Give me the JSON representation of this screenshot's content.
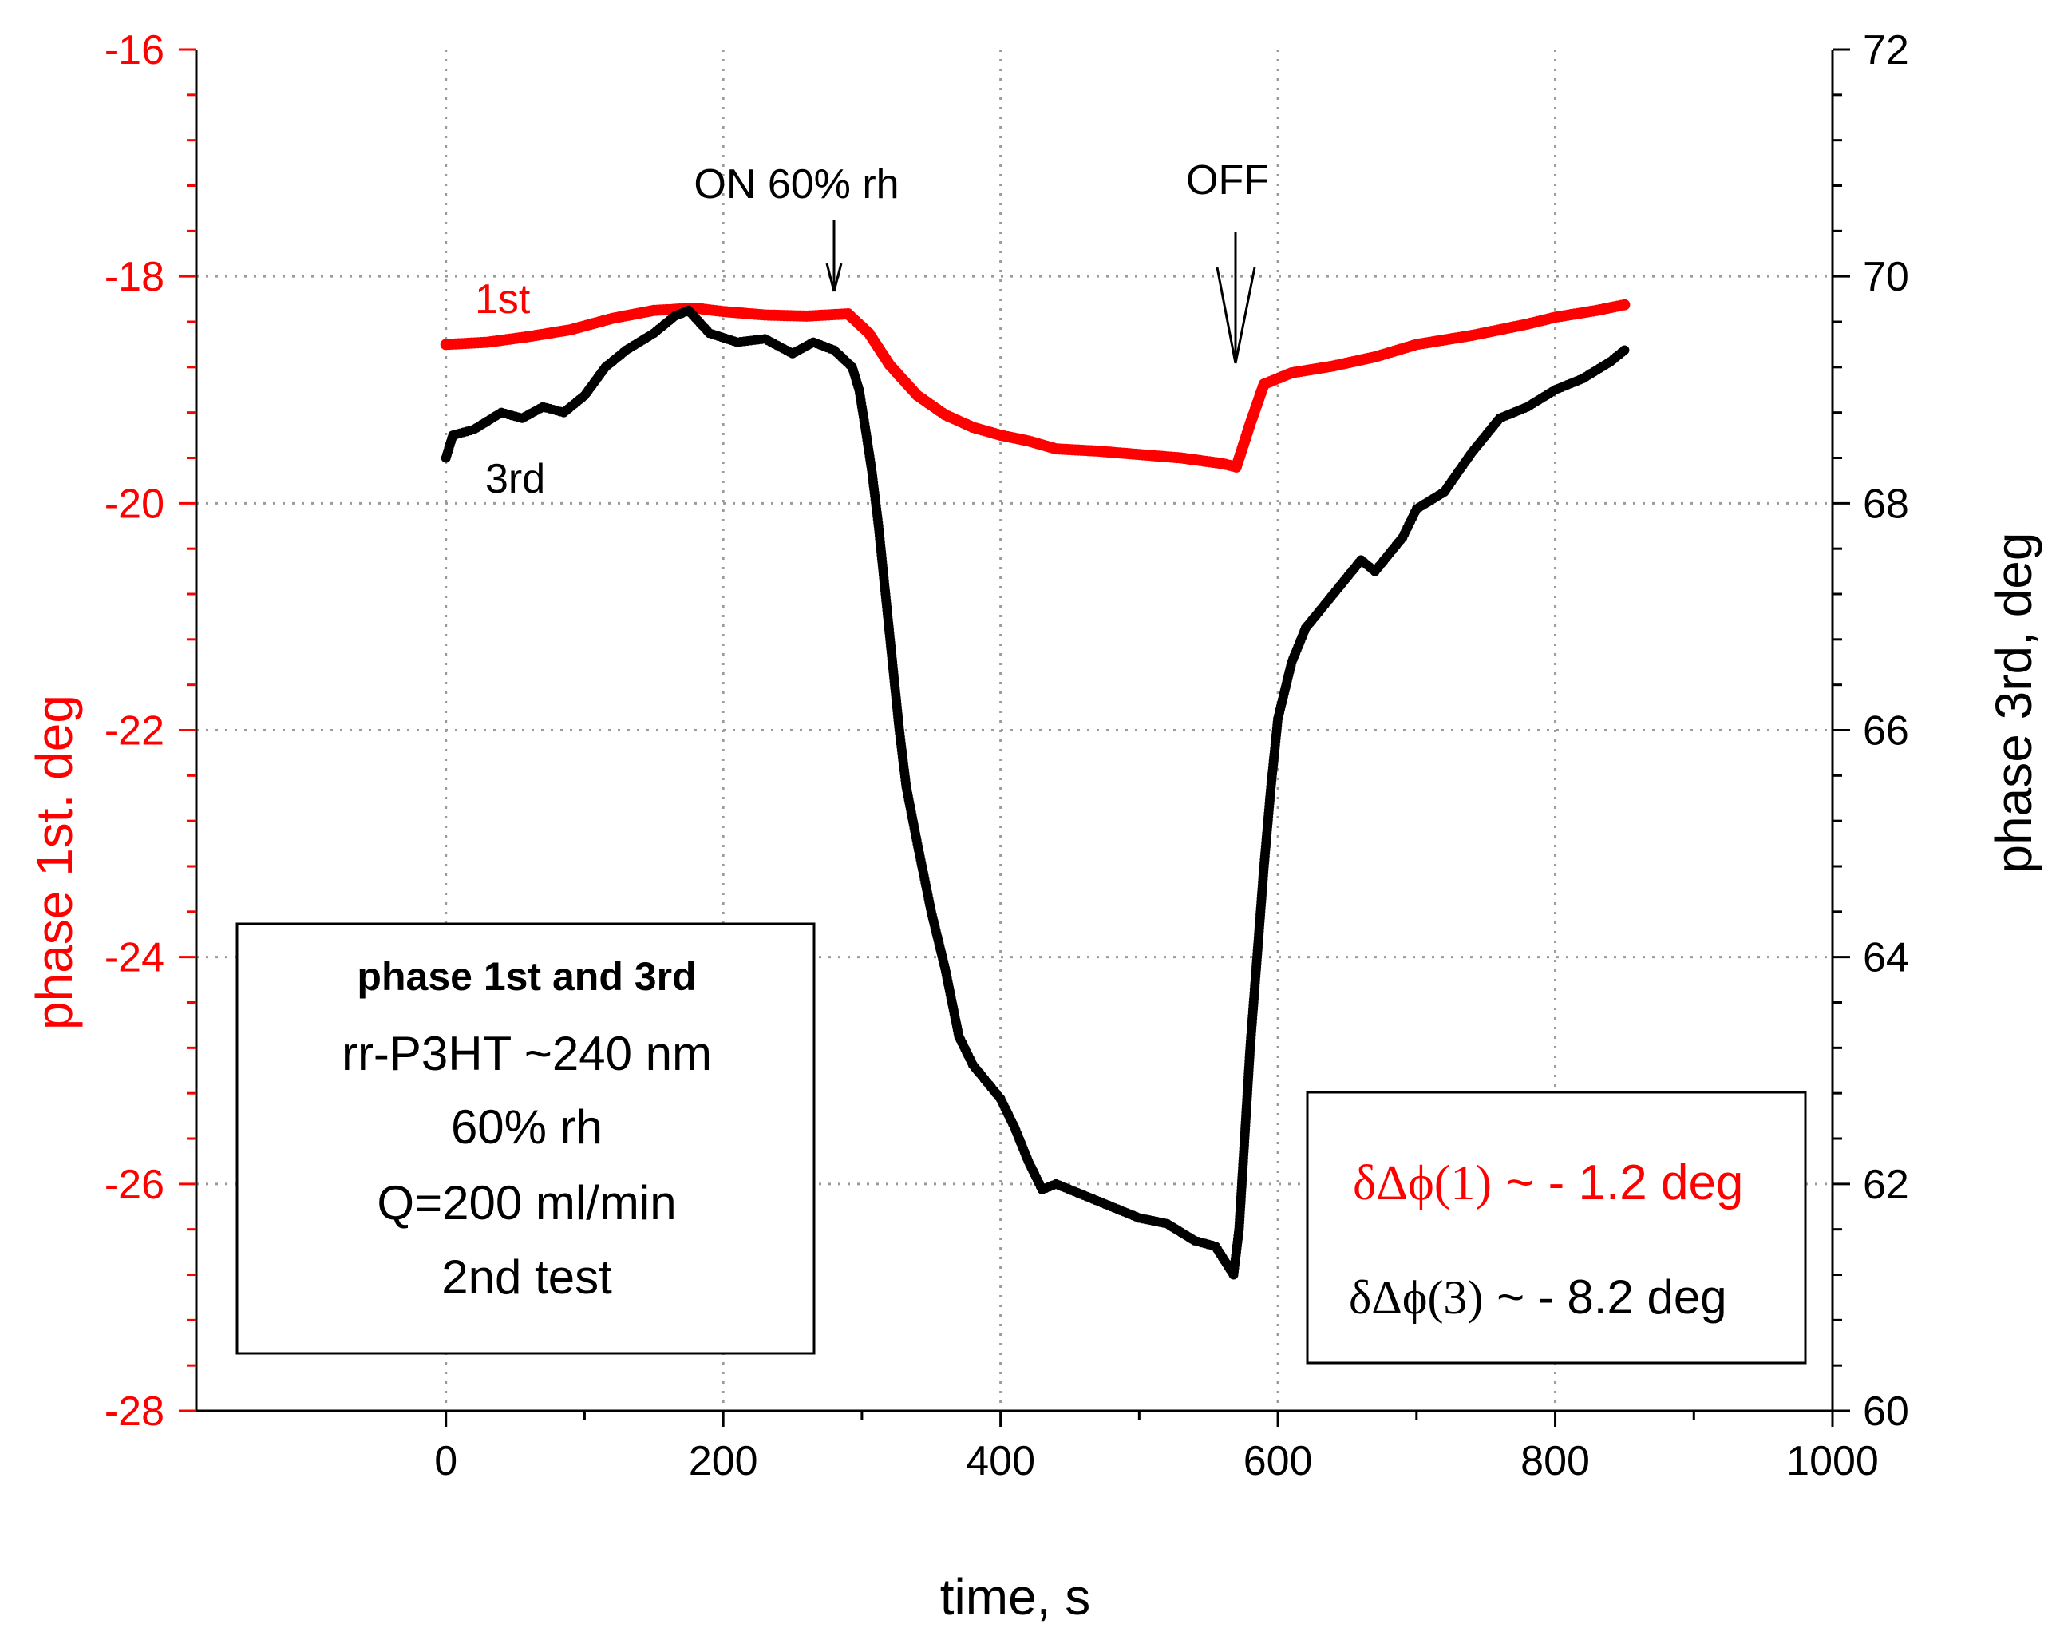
{
  "chart_data": {
    "type": "scatter",
    "xlabel": "time, s",
    "ylabel_left": "phase 1st. deg",
    "ylabel_right": "phase 3rd, deg",
    "xlim": [
      -180,
      1000
    ],
    "ylim_left": [
      -28,
      -16
    ],
    "ylim_right": [
      60,
      72
    ],
    "x_ticks": [
      0,
      200,
      400,
      600,
      800,
      1000
    ],
    "x_tick_labels": [
      "0",
      "200",
      "400",
      "600",
      "800",
      "1000"
    ],
    "y_left_ticks": [
      -28,
      -26,
      -24,
      -22,
      -20,
      -18,
      -16
    ],
    "y_left_tick_labels": [
      "-28",
      "-26",
      "-24",
      "-22",
      "-20",
      "-18",
      "-16"
    ],
    "y_right_ticks": [
      60,
      62,
      64,
      66,
      68,
      70,
      72
    ],
    "y_right_tick_labels": [
      "60",
      "62",
      "64",
      "66",
      "68",
      "70",
      "72"
    ],
    "grid": true,
    "colors": {
      "first": "#ff0000",
      "third": "#000000",
      "grid": "#9a9a9a"
    },
    "series": [
      {
        "name": "1st",
        "axis": "left",
        "color": "#ff0000",
        "points": [
          [
            0,
            -18.6
          ],
          [
            30,
            -18.58
          ],
          [
            60,
            -18.53
          ],
          [
            90,
            -18.47
          ],
          [
            120,
            -18.37
          ],
          [
            150,
            -18.3
          ],
          [
            180,
            -18.28
          ],
          [
            200,
            -18.31
          ],
          [
            230,
            -18.34
          ],
          [
            260,
            -18.35
          ],
          [
            290,
            -18.33
          ],
          [
            305,
            -18.5
          ],
          [
            320,
            -18.78
          ],
          [
            340,
            -19.05
          ],
          [
            360,
            -19.22
          ],
          [
            380,
            -19.33
          ],
          [
            400,
            -19.4
          ],
          [
            420,
            -19.45
          ],
          [
            440,
            -19.52
          ],
          [
            470,
            -19.54
          ],
          [
            500,
            -19.57
          ],
          [
            530,
            -19.6
          ],
          [
            560,
            -19.65
          ],
          [
            570,
            -19.68
          ],
          [
            580,
            -19.3
          ],
          [
            590,
            -18.95
          ],
          [
            610,
            -18.85
          ],
          [
            640,
            -18.79
          ],
          [
            670,
            -18.71
          ],
          [
            700,
            -18.6
          ],
          [
            740,
            -18.52
          ],
          [
            780,
            -18.42
          ],
          [
            800,
            -18.36
          ],
          [
            830,
            -18.3
          ],
          [
            850,
            -18.25
          ]
        ]
      },
      {
        "name": "3rd",
        "axis": "right",
        "color": "#000000",
        "points": [
          [
            0,
            68.4
          ],
          [
            5,
            68.6
          ],
          [
            20,
            68.65
          ],
          [
            40,
            68.8
          ],
          [
            55,
            68.75
          ],
          [
            70,
            68.85
          ],
          [
            85,
            68.8
          ],
          [
            100,
            68.95
          ],
          [
            115,
            69.2
          ],
          [
            130,
            69.35
          ],
          [
            150,
            69.5
          ],
          [
            165,
            69.65
          ],
          [
            175,
            69.7
          ],
          [
            190,
            69.5
          ],
          [
            210,
            69.42
          ],
          [
            230,
            69.45
          ],
          [
            250,
            69.32
          ],
          [
            265,
            69.42
          ],
          [
            280,
            69.35
          ],
          [
            293,
            69.2
          ],
          [
            298,
            69.0
          ],
          [
            302,
            68.7
          ],
          [
            307,
            68.3
          ],
          [
            312,
            67.8
          ],
          [
            317,
            67.2
          ],
          [
            322,
            66.6
          ],
          [
            327,
            66.0
          ],
          [
            332,
            65.5
          ],
          [
            340,
            65.0
          ],
          [
            350,
            64.4
          ],
          [
            360,
            63.9
          ],
          [
            370,
            63.3
          ],
          [
            380,
            63.05
          ],
          [
            390,
            62.9
          ],
          [
            400,
            62.75
          ],
          [
            410,
            62.5
          ],
          [
            420,
            62.2
          ],
          [
            430,
            61.95
          ],
          [
            440,
            62.0
          ],
          [
            460,
            61.9
          ],
          [
            480,
            61.8
          ],
          [
            500,
            61.7
          ],
          [
            520,
            61.65
          ],
          [
            540,
            61.5
          ],
          [
            555,
            61.45
          ],
          [
            568,
            61.2
          ],
          [
            572,
            61.6
          ],
          [
            576,
            62.4
          ],
          [
            580,
            63.2
          ],
          [
            585,
            64.0
          ],
          [
            590,
            64.8
          ],
          [
            595,
            65.5
          ],
          [
            600,
            66.1
          ],
          [
            610,
            66.6
          ],
          [
            620,
            66.9
          ],
          [
            640,
            67.2
          ],
          [
            660,
            67.5
          ],
          [
            670,
            67.4
          ],
          [
            690,
            67.7
          ],
          [
            700,
            67.95
          ],
          [
            720,
            68.1
          ],
          [
            740,
            68.45
          ],
          [
            760,
            68.75
          ],
          [
            780,
            68.85
          ],
          [
            800,
            69.0
          ],
          [
            820,
            69.1
          ],
          [
            840,
            69.25
          ],
          [
            850,
            69.35
          ]
        ]
      }
    ],
    "series_labels": {
      "first": "1st",
      "third": "3rd"
    },
    "annotations": {
      "on_label": "ON 60% rh",
      "off_label": "OFF",
      "on_time": 280,
      "off_time": 570
    },
    "info_box": {
      "heading": "phase 1st and 3rd",
      "line1": "rr-P3HT ~240 nm",
      "line2": "60% rh",
      "line3": "Q=200 ml/min",
      "line4": "2nd test"
    },
    "result_box": {
      "first_prefix": "δΔϕ(1)",
      "first_text": " ~ - 1.2 deg",
      "third_prefix": "δΔϕ(3)",
      "third_text": " ~  - 8.2 deg"
    }
  }
}
